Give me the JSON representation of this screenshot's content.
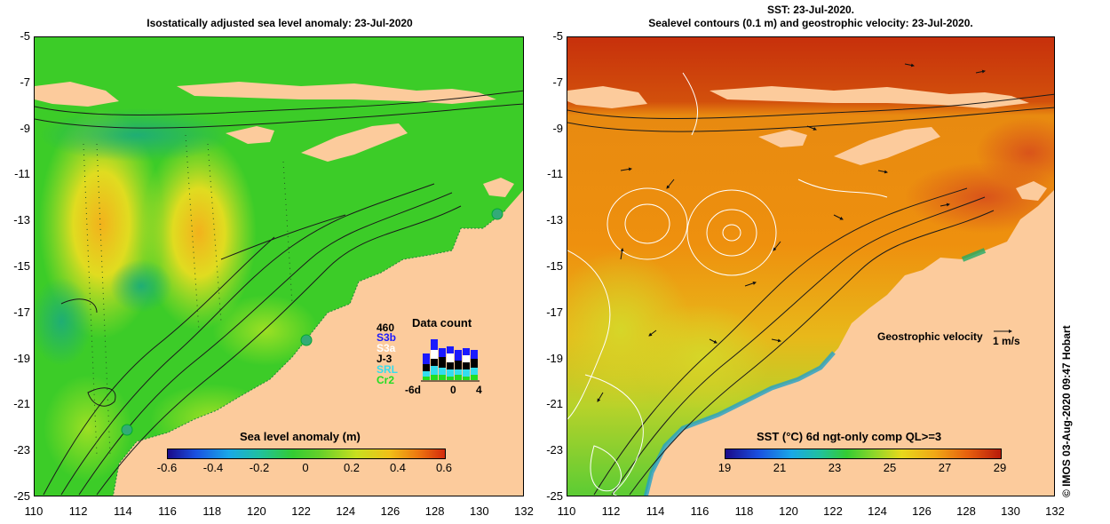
{
  "left_panel": {
    "title": "Isostatically adjusted sea level anomaly: 23-Jul-2020",
    "colorbar": {
      "title": "Sea level anomaly (m)",
      "labels": [
        "-0.6",
        "-0.4",
        "-0.2",
        "0",
        "0.2",
        "0.4",
        "0.6"
      ],
      "range": [
        -0.6,
        0.6
      ]
    },
    "data_count": {
      "title": "Data count",
      "max_label": "460",
      "satellites": [
        {
          "name": "S3b",
          "color": "#1a1aff"
        },
        {
          "name": "S3a",
          "color": "#ffffff"
        },
        {
          "name": "J-3",
          "color": "#000000"
        },
        {
          "name": "SRL",
          "color": "#33ddee"
        },
        {
          "name": "Cr2",
          "color": "#22dd22"
        }
      ],
      "x_labels": [
        "-6d",
        "0",
        "4"
      ]
    }
  },
  "right_panel": {
    "title_line1": "SST: 23-Jul-2020.",
    "title_line2": "Sealevel contours (0.1 m) and geostrophic velocity: 23-Jul-2020.",
    "colorbar": {
      "title": "SST (°C) 6d ngt-only comp QL>=3",
      "labels": [
        "19",
        "21",
        "23",
        "25",
        "27",
        "29"
      ],
      "range": [
        19,
        29
      ]
    },
    "velocity_legend": {
      "label": "Geostrophic velocity",
      "unit_label": "1 m/s"
    }
  },
  "axes": {
    "y_ticks": [
      "-5",
      "-7",
      "-9",
      "-11",
      "-13",
      "-15",
      "-17",
      "-19",
      "-21",
      "-23",
      "-25"
    ],
    "x_ticks": [
      "110",
      "112",
      "114",
      "116",
      "118",
      "120",
      "122",
      "124",
      "126",
      "128",
      "130",
      "132"
    ],
    "lon_range": [
      110,
      132
    ],
    "lat_range": [
      -25,
      -5
    ]
  },
  "copyright": "© IMOS 03-Aug-2020 09:47 Hobart",
  "colors": {
    "land": "#fccb9c",
    "sla_base": "#3ccc28",
    "sst_warm": "#d9460c",
    "sst_mid": "#ee8c0c"
  }
}
